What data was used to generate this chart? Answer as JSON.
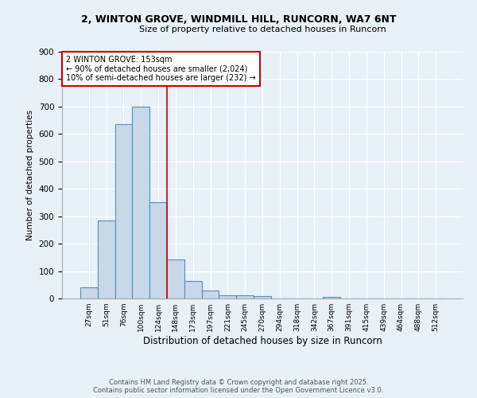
{
  "title_line1": "2, WINTON GROVE, WINDMILL HILL, RUNCORN, WA7 6NT",
  "title_line2": "Size of property relative to detached houses in Runcorn",
  "categories": [
    "27sqm",
    "51sqm",
    "76sqm",
    "100sqm",
    "124sqm",
    "148sqm",
    "173sqm",
    "197sqm",
    "221sqm",
    "245sqm",
    "270sqm",
    "294sqm",
    "318sqm",
    "342sqm",
    "367sqm",
    "391sqm",
    "415sqm",
    "439sqm",
    "464sqm",
    "488sqm",
    "512sqm"
  ],
  "values": [
    42,
    285,
    635,
    700,
    350,
    143,
    65,
    28,
    12,
    11,
    8,
    0,
    0,
    0,
    7,
    0,
    0,
    0,
    0,
    0,
    0
  ],
  "bar_color": "#c8d8e8",
  "bar_edge_color": "#5090c0",
  "property_line_x": 4.5,
  "property_line_color": "#cc0000",
  "ylabel": "Number of detached properties",
  "xlabel": "Distribution of detached houses by size in Runcorn",
  "ylim": [
    0,
    900
  ],
  "yticks": [
    0,
    100,
    200,
    300,
    400,
    500,
    600,
    700,
    800,
    900
  ],
  "annotation_title": "2 WINTON GROVE: 153sqm",
  "annotation_line1": "← 90% of detached houses are smaller (2,024)",
  "annotation_line2": "10% of semi-detached houses are larger (232) →",
  "annotation_box_color": "#ffffff",
  "annotation_box_edge": "#cc0000",
  "background_color": "#e8f0f8",
  "grid_color": "#ffffff",
  "footer_line1": "Contains HM Land Registry data © Crown copyright and database right 2025.",
  "footer_line2": "Contains public sector information licensed under the Open Government Licence v3.0."
}
